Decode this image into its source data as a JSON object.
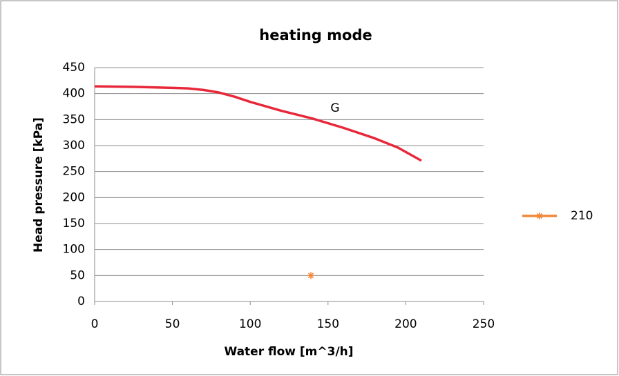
{
  "chart_data": {
    "type": "line",
    "title": "heating mode",
    "x_label": "Water flow [m^3/h]",
    "y_label": "Head pressure [kPa]",
    "annotation": "G",
    "xlim": [
      0,
      250
    ],
    "xticks": [
      0,
      50,
      100,
      150,
      200,
      250
    ],
    "ylim": [
      0,
      450
    ],
    "yticks": [
      0,
      50,
      100,
      150,
      200,
      250,
      300,
      350,
      400,
      450
    ],
    "grid": true,
    "legend": "right",
    "series": [
      {
        "color": "#e8283a",
        "x": [
          0,
          25,
          50,
          60,
          70,
          80,
          90,
          100,
          120,
          140,
          160,
          180,
          195,
          210
        ],
        "values": [
          414,
          413,
          411,
          410,
          407,
          402,
          394,
          384,
          367,
          352,
          334,
          314,
          296,
          271
        ]
      },
      {
        "name": "210",
        "color": "#f0883a",
        "marker": "star",
        "x": [
          139
        ],
        "values": [
          50
        ]
      }
    ]
  }
}
